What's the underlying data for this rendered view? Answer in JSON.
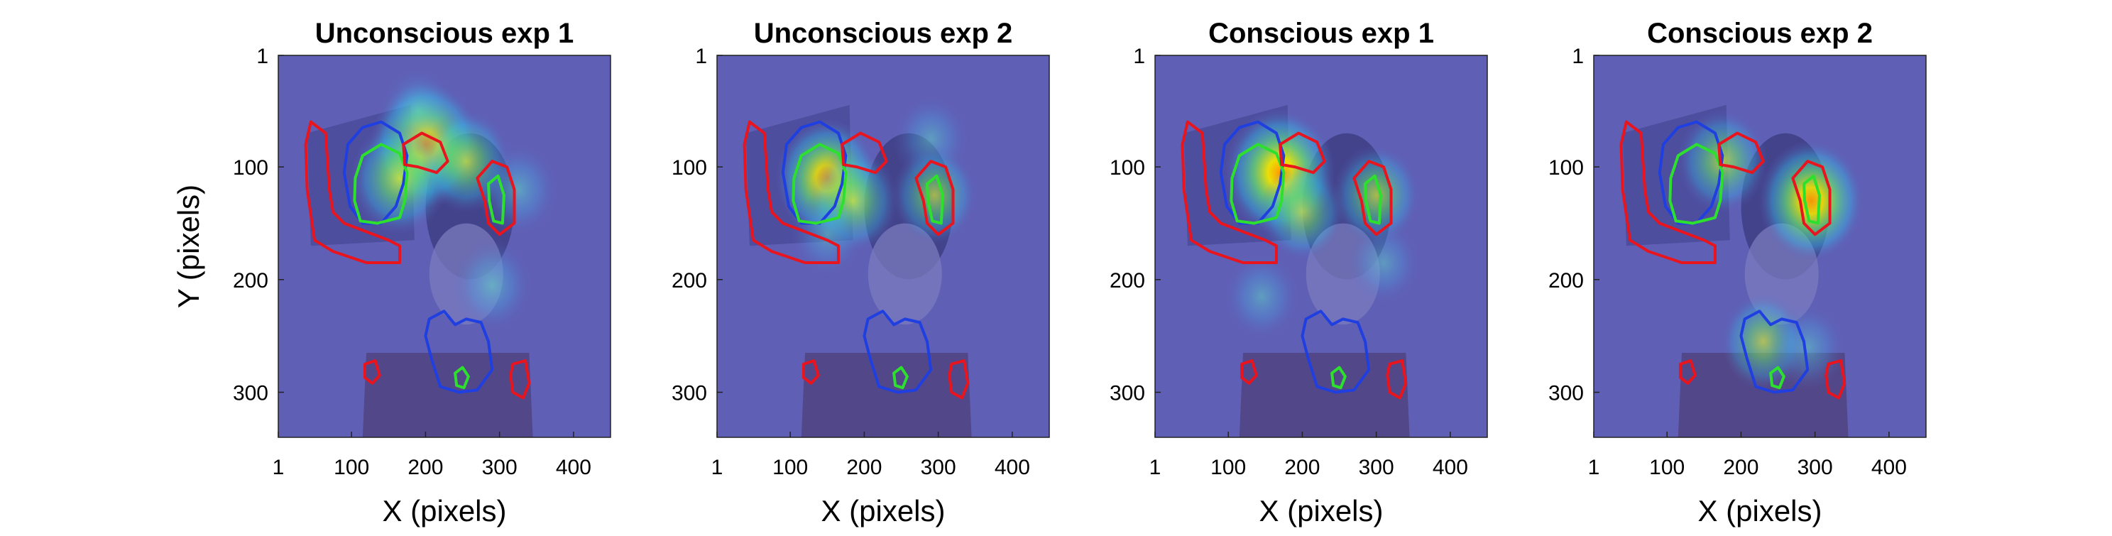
{
  "chart_data": [
    {
      "type": "heatmap",
      "title": "Unconscious exp 1",
      "xlabel": "X (pixels)",
      "ylabel": "Y (pixels)",
      "xlim": [
        1,
        450
      ],
      "ylim": [
        1,
        340
      ],
      "y_reversed": true,
      "xticks": [
        1,
        100,
        200,
        300,
        400
      ],
      "yticks": [
        1,
        100,
        200,
        300
      ],
      "grid": false,
      "colormap": "jet",
      "background_color": "#5f5fb5",
      "hotspots": [
        {
          "x": 200,
          "y": 80,
          "weight": 1.0
        },
        {
          "x": 165,
          "y": 110,
          "weight": 0.75
        },
        {
          "x": 255,
          "y": 95,
          "weight": 0.6
        },
        {
          "x": 325,
          "y": 120,
          "weight": 0.45
        },
        {
          "x": 290,
          "y": 205,
          "weight": 0.45
        },
        {
          "x": 190,
          "y": 50,
          "weight": 0.35
        }
      ]
    },
    {
      "type": "heatmap",
      "title": "Unconscious exp 2",
      "xlabel": "X (pixels)",
      "ylabel": "",
      "xlim": [
        1,
        450
      ],
      "ylim": [
        1,
        340
      ],
      "y_reversed": true,
      "xticks": [
        1,
        100,
        200,
        300,
        400
      ],
      "yticks": [
        1,
        100,
        200,
        300
      ],
      "grid": false,
      "colormap": "jet",
      "background_color": "#5f5fb5",
      "hotspots": [
        {
          "x": 150,
          "y": 110,
          "weight": 0.85
        },
        {
          "x": 185,
          "y": 130,
          "weight": 0.6
        },
        {
          "x": 290,
          "y": 75,
          "weight": 0.35
        },
        {
          "x": 295,
          "y": 125,
          "weight": 0.5
        },
        {
          "x": 150,
          "y": 160,
          "weight": 0.3
        }
      ]
    },
    {
      "type": "heatmap",
      "title": "Conscious exp 1",
      "xlabel": "X (pixels)",
      "ylabel": "",
      "xlim": [
        1,
        450
      ],
      "ylim": [
        1,
        340
      ],
      "y_reversed": true,
      "xticks": [
        1,
        100,
        200,
        300,
        400
      ],
      "yticks": [
        1,
        100,
        200,
        300
      ],
      "grid": false,
      "colormap": "jet",
      "background_color": "#5f5fb5",
      "hotspots": [
        {
          "x": 170,
          "y": 105,
          "weight": 1.0
        },
        {
          "x": 200,
          "y": 140,
          "weight": 0.5
        },
        {
          "x": 300,
          "y": 125,
          "weight": 0.55
        },
        {
          "x": 145,
          "y": 215,
          "weight": 0.35
        },
        {
          "x": 310,
          "y": 185,
          "weight": 0.3
        }
      ]
    },
    {
      "type": "heatmap",
      "title": "Conscious exp 2",
      "xlabel": "X (pixels)",
      "ylabel": "",
      "xlim": [
        1,
        450
      ],
      "ylim": [
        1,
        340
      ],
      "y_reversed": true,
      "xticks": [
        1,
        100,
        200,
        300,
        400
      ],
      "yticks": [
        1,
        100,
        200,
        300
      ],
      "grid": false,
      "colormap": "jet",
      "background_color": "#5f5fb5",
      "hotspots": [
        {
          "x": 175,
          "y": 95,
          "weight": 0.6
        },
        {
          "x": 295,
          "y": 130,
          "weight": 0.9
        },
        {
          "x": 230,
          "y": 255,
          "weight": 0.5
        },
        {
          "x": 290,
          "y": 260,
          "weight": 0.35
        }
      ]
    }
  ]
}
